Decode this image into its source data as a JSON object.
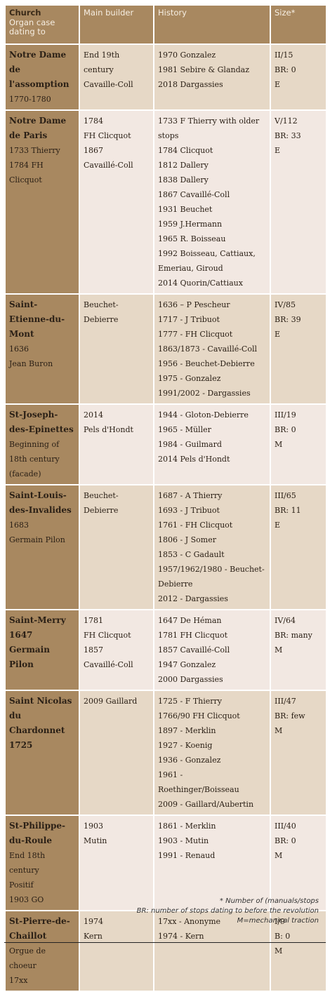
{
  "headers": {
    "church_main": "Church",
    "church_sub1": "Organ case",
    "church_sub2": "dating to",
    "builder": "Main builder",
    "history": "History",
    "size": "Size*"
  },
  "rows": [
    {
      "name": "Notre Dame de l'assomption",
      "church_extra": [
        "1770-1780"
      ],
      "builder": [
        "End 19th century",
        "Cavaille-Coll"
      ],
      "history": [
        "1970 Gonzalez",
        "1981 Sebire & Glandaz",
        "2018 Dargassies"
      ],
      "size": [
        "II/15",
        "BR: 0",
        "E"
      ]
    },
    {
      "name": "Notre Dame de Paris",
      "church_extra": [
        "1733 Thierry",
        "1784 FH Clicquot"
      ],
      "builder": [
        "1784",
        "FH Clicquot",
        "1867",
        "Cavaillé-Coll"
      ],
      "history": [
        "1733 F Thierry with older stops",
        "1784 Clicquot",
        "1812 Dallery",
        "1838 Dallery",
        "1867 Cavaillé-Coll",
        "1931 Beuchet",
        "1959 J.Hermann",
        "1965 R. Boisseau",
        "1992 Boisseau, Cattiaux, Emeriau, Giroud",
        "2014 Quorin/Cattiaux"
      ],
      "size": [
        "V/112",
        "BR: 33",
        "E"
      ]
    },
    {
      "name": "Saint-Etienne-du-Mont",
      "church_extra": [
        "1636",
        "Jean Buron"
      ],
      "builder": [
        "Beuchet-Debierre"
      ],
      "history": [
        "1636 – P Pescheur",
        "1717 - J Tribuot",
        "1777 - FH Clicquot",
        "1863/1873 - Cavaillé-Coll",
        "1956 - Beuchet-Debierre",
        "1975 - Gonzalez",
        "1991/2002 - Dargassies"
      ],
      "size": [
        "IV/85",
        "BR: 39",
        "E"
      ]
    },
    {
      "name": "St-Joseph-des-Epinettes",
      "church_extra": [
        "Beginning of 18th century (facade)"
      ],
      "builder": [
        "2014",
        "Pels d'Hondt"
      ],
      "history": [
        "1944 - Gloton-Debierre",
        "1965 - Müller",
        "1984 - Guilmard",
        "2014 Pels d'Hondt"
      ],
      "size": [
        "III/19",
        "BR: 0",
        "M"
      ]
    },
    {
      "name": "Saint-Louis-des-Invalides",
      "church_extra": [
        "1683",
        "Germain Pilon"
      ],
      "builder": [
        "Beuchet-Debierre"
      ],
      "history": [
        "1687 - A Thierry",
        "1693 - J Tribuot",
        "1761 - FH Clicquot",
        "1806 - J Somer",
        "1853 - C Gadault",
        "1957/1962/1980 - Beuchet-Debierre",
        "2012 - Dargassies"
      ],
      "size": [
        "III/65",
        "BR: 11",
        "E"
      ]
    },
    {
      "name": "Saint-Merry 1647 Germain Pilon",
      "church_extra": [],
      "builder": [
        "1781",
        "FH Clicquot",
        "1857",
        "Cavaillé-Coll"
      ],
      "history": [
        "1647 De Héman",
        "1781 FH Clicquot",
        "1857 Cavaillé-Coll",
        "1947 Gonzalez",
        "2000 Dargassies"
      ],
      "size": [
        "IV/64",
        "BR: many",
        "M"
      ]
    },
    {
      "name": "Saint Nicolas du Chardonnet 1725",
      "church_extra": [],
      "builder": [
        "2009 Gaillard"
      ],
      "history": [
        "1725 - F Thierry",
        "1766/90 FH Clicquot",
        "1897 - Merklin",
        "1927 - Koenig",
        "1936 - Gonzalez",
        "1961 - Roethinger/Boisseau",
        "2009 - Gaillard/Aubertin"
      ],
      "size": [
        "III/47",
        "BR: few",
        "M"
      ]
    },
    {
      "name": "St-Philippe-du-Roule",
      "church_extra": [
        "End 18th century",
        "Positif",
        "1903 GO"
      ],
      "builder": [
        "1903",
        "Mutin"
      ],
      "history": [
        "1861 - Merklin",
        "1903 - Mutin",
        "1991 - Renaud"
      ],
      "size": [
        "III/40",
        "BR: 0",
        "M"
      ]
    },
    {
      "name": "St-Pierre-de-Chaillot",
      "church_extra": [
        "Orgue de choeur",
        "17xx"
      ],
      "builder": [
        "1974",
        "Kern"
      ],
      "history": [
        "17xx - Anonyme",
        "1974 - Kern"
      ],
      "size": [
        "I/9",
        "B: 0",
        "M"
      ]
    }
  ],
  "footnotes": [
    "* Number of (manuals/stops",
    "BR: number of stops dating to before the revolution",
    "M=mechanical traction"
  ]
}
